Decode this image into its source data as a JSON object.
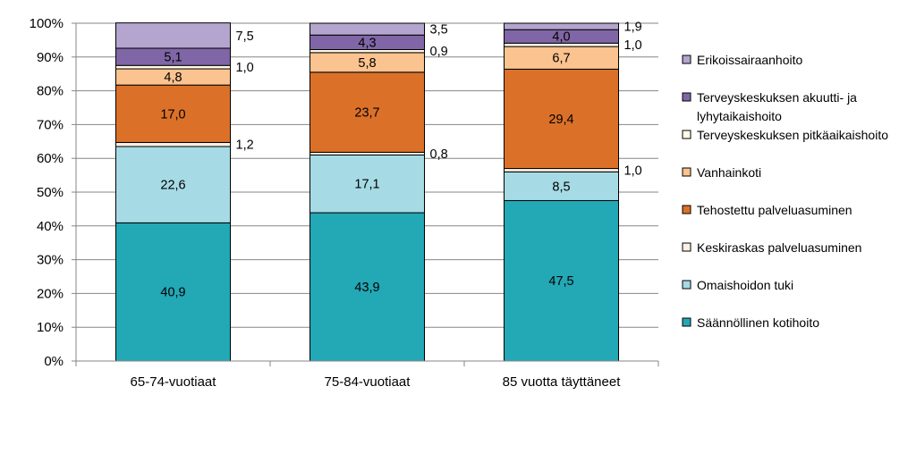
{
  "chart_data": {
    "type": "bar",
    "stacked": true,
    "categories": [
      "65-74-vuotiaat",
      "75-84-vuotiaat",
      "85 vuotta täyttäneet"
    ],
    "ylim": [
      0,
      100
    ],
    "yticks": [
      "0%",
      "10%",
      "20%",
      "30%",
      "40%",
      "50%",
      "60%",
      "70%",
      "80%",
      "90%",
      "100%"
    ],
    "grid": true,
    "legend_position": "right",
    "series": [
      {
        "name": "Säännöllinen kotihoito",
        "values": [
          40.9,
          43.9,
          47.5
        ],
        "labels": [
          "40,9",
          "43,9",
          "47,5"
        ],
        "color": "#23a8b6"
      },
      {
        "name": "Omaishoidon tuki",
        "values": [
          22.6,
          17.1,
          8.5
        ],
        "labels": [
          "22,6",
          "17,1",
          "8,5"
        ],
        "color": "#a6dbe6"
      },
      {
        "name": "Keskiraskas palveluasuminen",
        "values": [
          1.2,
          0.8,
          1.0
        ],
        "labels": [
          "1,2",
          "0,8",
          "1,0"
        ],
        "color": "#fdf0e4"
      },
      {
        "name": "Tehostettu palveluasuminen",
        "values": [
          17.0,
          23.7,
          29.4
        ],
        "labels": [
          "17,0",
          "23,7",
          "29,4"
        ],
        "color": "#db7129"
      },
      {
        "name": "Vanhainkoti",
        "values": [
          4.8,
          5.8,
          6.7
        ],
        "labels": [
          "4,8",
          "5,8",
          "6,7"
        ],
        "color": "#fbc38f"
      },
      {
        "name": "Terveyskeskuksen pitkäaikaishoito",
        "values": [
          1.0,
          0.9,
          1.0
        ],
        "labels": [
          "1,0",
          "0,9",
          "1,0"
        ],
        "color": "#fffbe9"
      },
      {
        "name": "Terveyskeskuksen akuutti- ja lyhytaikaishoito",
        "values": [
          5.1,
          4.3,
          4.0
        ],
        "labels": [
          "5,1",
          "4,3",
          "4,0"
        ],
        "color": "#8066a6",
        "legend_lines": [
          "Terveyskeskuksen akuutti- ja",
          "lyhytaikaishoito"
        ]
      },
      {
        "name": "Erikoissairaanhoito",
        "values": [
          7.5,
          3.5,
          1.9
        ],
        "labels": [
          "7,5",
          "3,5",
          "1,9"
        ],
        "color": "#b4a5cf"
      }
    ]
  }
}
